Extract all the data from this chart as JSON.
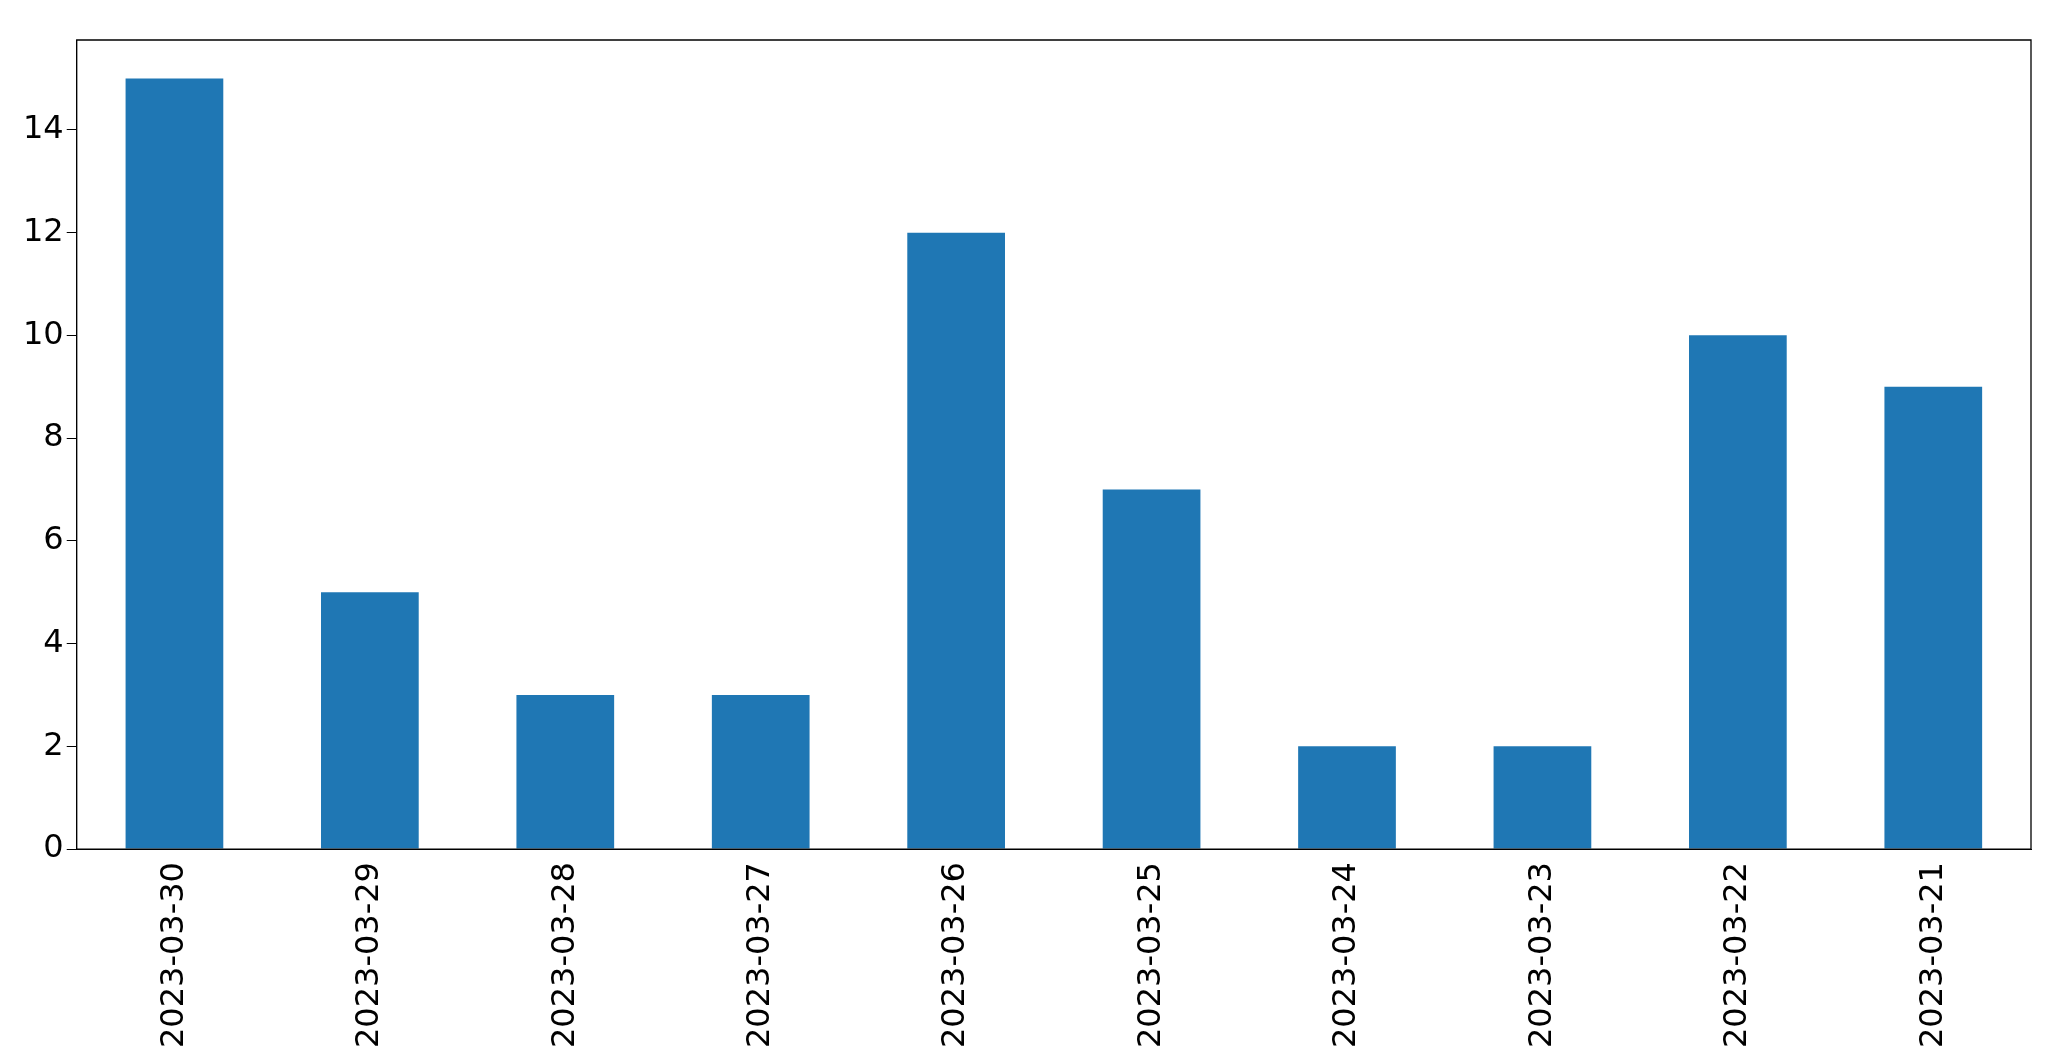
{
  "chart_data": {
    "type": "bar",
    "categories": [
      "2023-03-30",
      "2023-03-29",
      "2023-03-28",
      "2023-03-27",
      "2023-03-26",
      "2023-03-25",
      "2023-03-24",
      "2023-03-23",
      "2023-03-22",
      "2023-03-21"
    ],
    "values": [
      15,
      5,
      3,
      3,
      12,
      7,
      2,
      2,
      10,
      9
    ],
    "color": "#1f77b4",
    "ylim": [
      0,
      15.75
    ],
    "yticks": [
      0,
      2,
      4,
      6,
      8,
      10,
      12,
      14
    ],
    "grid": false,
    "legend": false
  }
}
